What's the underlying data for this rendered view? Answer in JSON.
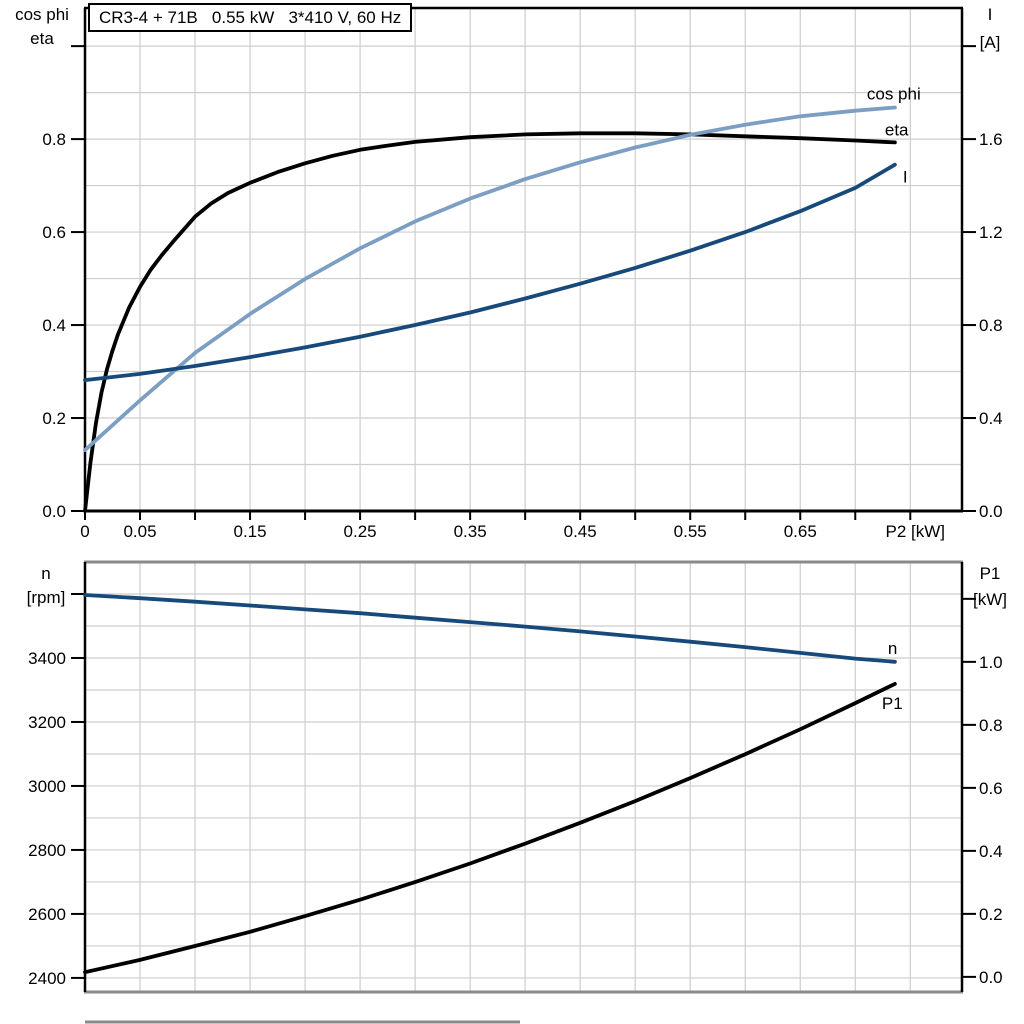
{
  "panel": {
    "title": "CR3-4 + 71B   0.55 kW   3*410 V, 60 Hz"
  },
  "colors": {
    "background": "#ffffff",
    "text": "#000000",
    "grid": "#cdcdcd",
    "frame_gray": "#8a8a8a",
    "axis_black": "#000000",
    "curve_black": "#000000",
    "curve_dark_blue": "#17497b",
    "curve_light_blue": "#7d9ec3"
  },
  "chart_data": [
    {
      "type": "line",
      "title": "CR3-4 + 71B   0.55 kW   3*410 V, 60 Hz",
      "x_axis": {
        "label": "P2 [kW]",
        "min": 0,
        "max": 0.797,
        "grid": {
          "start": 0.05,
          "end": 0.75,
          "step": 0.05
        },
        "ticks": [
          {
            "v": 0,
            "t": "0"
          },
          {
            "v": 0.05,
            "t": "0.05"
          },
          {
            "v": 0.15,
            "t": "0.15"
          },
          {
            "v": 0.25,
            "t": "0.25"
          },
          {
            "v": 0.35,
            "t": "0.35"
          },
          {
            "v": 0.45,
            "t": "0.45"
          },
          {
            "v": 0.55,
            "t": "0.55"
          },
          {
            "v": 0.65,
            "t": "0.65"
          }
        ],
        "unit": {
          "v": 0.75,
          "t": "P2 [kW]"
        }
      },
      "y_left": {
        "header": [
          "cos phi",
          "eta"
        ],
        "min": 0,
        "max": 1.082,
        "grid": {
          "start": 0.1,
          "end": 1.0,
          "step": 0.1
        },
        "ticks": [
          {
            "v": 0,
            "t": "0.0"
          },
          {
            "v": 0.2,
            "t": "0.2"
          },
          {
            "v": 0.4,
            "t": "0.4"
          },
          {
            "v": 0.6,
            "t": "0.6"
          },
          {
            "v": 0.8,
            "t": "0.8"
          }
        ],
        "header_tick": 1.0
      },
      "y_right": {
        "header": [
          "I",
          "[A]"
        ],
        "min": 0,
        "max": 2.164,
        "ticks": [
          {
            "v": 0,
            "t": "0.0"
          },
          {
            "v": 0.4,
            "t": "0.4"
          },
          {
            "v": 0.8,
            "t": "0.8"
          },
          {
            "v": 1.2,
            "t": "1.2"
          },
          {
            "v": 1.6,
            "t": "1.6"
          }
        ],
        "header_tick": 2.0
      },
      "series": [
        {
          "name": "eta",
          "label": "eta",
          "axis": "left",
          "color": "#000000",
          "label_offset": [
            -10,
            -7
          ],
          "points": [
            [
              0,
              0
            ],
            [
              0.005,
              0.105
            ],
            [
              0.01,
              0.19
            ],
            [
              0.015,
              0.255
            ],
            [
              0.02,
              0.305
            ],
            [
              0.025,
              0.345
            ],
            [
              0.03,
              0.38
            ],
            [
              0.04,
              0.437
            ],
            [
              0.05,
              0.482
            ],
            [
              0.06,
              0.52
            ],
            [
              0.07,
              0.551
            ],
            [
              0.08,
              0.579
            ],
            [
              0.09,
              0.606
            ],
            [
              0.1,
              0.633
            ],
            [
              0.115,
              0.662
            ],
            [
              0.13,
              0.684
            ],
            [
              0.15,
              0.706
            ],
            [
              0.175,
              0.729
            ],
            [
              0.2,
              0.748
            ],
            [
              0.225,
              0.764
            ],
            [
              0.25,
              0.777
            ],
            [
              0.275,
              0.786
            ],
            [
              0.3,
              0.794
            ],
            [
              0.35,
              0.804
            ],
            [
              0.4,
              0.81
            ],
            [
              0.45,
              0.8125
            ],
            [
              0.5,
              0.8125
            ],
            [
              0.55,
              0.81
            ],
            [
              0.6,
              0.806
            ],
            [
              0.65,
              0.802
            ],
            [
              0.7,
              0.797
            ],
            [
              0.736,
              0.793
            ]
          ]
        },
        {
          "name": "cos-phi",
          "label": "cos phi",
          "axis": "left",
          "color": "#7d9ec3",
          "label_offset": [
            -28,
            -8
          ],
          "points": [
            [
              0,
              0.131
            ],
            [
              0.05,
              0.238
            ],
            [
              0.1,
              0.34
            ],
            [
              0.15,
              0.424
            ],
            [
              0.2,
              0.499
            ],
            [
              0.25,
              0.565
            ],
            [
              0.3,
              0.623
            ],
            [
              0.35,
              0.672
            ],
            [
              0.4,
              0.714
            ],
            [
              0.45,
              0.75
            ],
            [
              0.5,
              0.782
            ],
            [
              0.55,
              0.809
            ],
            [
              0.6,
              0.831
            ],
            [
              0.65,
              0.849
            ],
            [
              0.7,
              0.861
            ],
            [
              0.736,
              0.868
            ]
          ]
        },
        {
          "name": "current",
          "label": "I",
          "axis": "right",
          "color": "#17497b",
          "label_offset": [
            8,
            18
          ],
          "points": [
            [
              0,
              0.563
            ],
            [
              0.05,
              0.59
            ],
            [
              0.1,
              0.624
            ],
            [
              0.15,
              0.662
            ],
            [
              0.2,
              0.704
            ],
            [
              0.25,
              0.75
            ],
            [
              0.3,
              0.8
            ],
            [
              0.35,
              0.854
            ],
            [
              0.4,
              0.914
            ],
            [
              0.45,
              0.978
            ],
            [
              0.5,
              1.046
            ],
            [
              0.55,
              1.12
            ],
            [
              0.6,
              1.2
            ],
            [
              0.65,
              1.29
            ],
            [
              0.7,
              1.39
            ],
            [
              0.736,
              1.49
            ]
          ]
        }
      ]
    },
    {
      "type": "line",
      "title": "",
      "x_axis": {
        "label": "",
        "min": 0,
        "max": 0.797,
        "grid": {
          "start": 0.05,
          "end": 0.75,
          "step": 0.05
        },
        "ticks": [],
        "unit": null
      },
      "y_left": {
        "header": [
          "n",
          "[rpm]"
        ],
        "min": 2356,
        "max": 3700,
        "grid": {
          "start": 2400,
          "end": 3600,
          "step": 100
        },
        "ticks": [
          {
            "v": 2400,
            "t": "2400"
          },
          {
            "v": 2600,
            "t": "2600"
          },
          {
            "v": 2800,
            "t": "2800"
          },
          {
            "v": 3000,
            "t": "3000"
          },
          {
            "v": 3200,
            "t": "3200"
          },
          {
            "v": 3400,
            "t": "3400"
          }
        ],
        "header_tick": 3600
      },
      "y_right": {
        "header": [
          "P1",
          "[kW]"
        ],
        "min": -0.048,
        "max": 1.317,
        "ticks": [
          {
            "v": 0,
            "t": "0.0"
          },
          {
            "v": 0.2,
            "t": "0.2"
          },
          {
            "v": 0.4,
            "t": "0.4"
          },
          {
            "v": 0.6,
            "t": "0.6"
          },
          {
            "v": 0.8,
            "t": "0.8"
          },
          {
            "v": 1.0,
            "t": "1.0"
          }
        ],
        "header_tick": 1.2
      },
      "series": [
        {
          "name": "speed",
          "label": "n",
          "axis": "left",
          "color": "#17497b",
          "label_offset": [
            -7,
            -8
          ],
          "points": [
            [
              0,
              3597
            ],
            [
              0.05,
              3587
            ],
            [
              0.1,
              3576
            ],
            [
              0.15,
              3564
            ],
            [
              0.2,
              3552
            ],
            [
              0.25,
              3540
            ],
            [
              0.3,
              3526
            ],
            [
              0.35,
              3512
            ],
            [
              0.4,
              3498
            ],
            [
              0.45,
              3483
            ],
            [
              0.5,
              3467
            ],
            [
              0.55,
              3451
            ],
            [
              0.6,
              3434
            ],
            [
              0.65,
              3416
            ],
            [
              0.7,
              3398
            ],
            [
              0.736,
              3388
            ]
          ]
        },
        {
          "name": "input-power",
          "label": "P1",
          "axis": "right",
          "color": "#000000",
          "label_offset": [
            -13,
            25
          ],
          "points": [
            [
              0,
              0.015
            ],
            [
              0.05,
              0.054
            ],
            [
              0.1,
              0.098
            ],
            [
              0.15,
              0.143
            ],
            [
              0.2,
              0.193
            ],
            [
              0.25,
              0.245
            ],
            [
              0.3,
              0.301
            ],
            [
              0.35,
              0.36
            ],
            [
              0.4,
              0.423
            ],
            [
              0.45,
              0.489
            ],
            [
              0.5,
              0.558
            ],
            [
              0.55,
              0.631
            ],
            [
              0.6,
              0.707
            ],
            [
              0.65,
              0.786
            ],
            [
              0.7,
              0.869
            ],
            [
              0.736,
              0.93
            ]
          ]
        }
      ]
    }
  ]
}
